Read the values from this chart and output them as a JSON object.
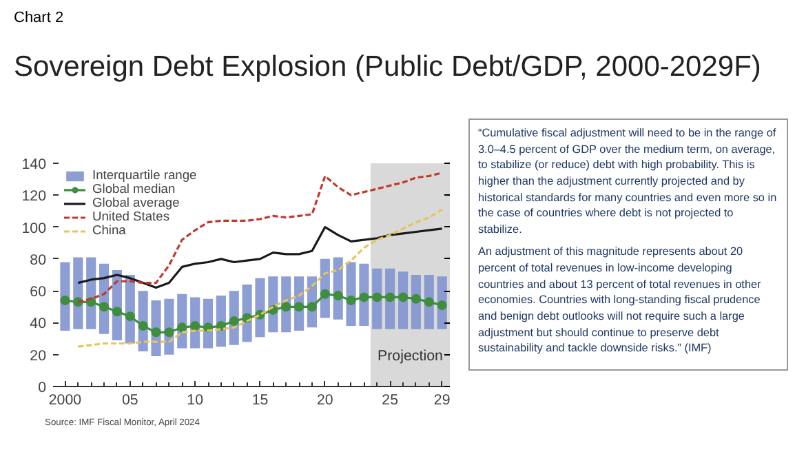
{
  "chart_data": [
    {
      "type": "bar",
      "title": "Sovereign Debt Explosion (Public Debt/GDP, 2000-2029F)",
      "subtitle": "Chart 2",
      "x": [
        2000,
        2001,
        2002,
        2003,
        2004,
        2005,
        2006,
        2007,
        2008,
        2009,
        2010,
        2011,
        2012,
        2013,
        2014,
        2015,
        2016,
        2017,
        2018,
        2019,
        2020,
        2021,
        2022,
        2023,
        2024,
        2025,
        2026,
        2027,
        2028,
        2029
      ],
      "series": [
        {
          "type": "bar",
          "name": "Interquartile range",
          "color": "#7f93cf",
          "base": [
            35,
            36,
            36,
            33,
            29,
            27,
            22,
            19,
            20,
            24,
            24,
            24,
            25,
            26,
            28,
            31,
            34,
            34,
            35,
            37,
            43,
            42,
            38,
            38,
            36,
            36,
            36,
            36,
            36,
            36
          ],
          "values": [
            43,
            45,
            45,
            44,
            44,
            43,
            38,
            35,
            35,
            34,
            32,
            31,
            32,
            34,
            36,
            37,
            35,
            35,
            34,
            32,
            37,
            39,
            40,
            39,
            38,
            38,
            36,
            34,
            34,
            33
          ]
        },
        {
          "type": "line",
          "name": "Global median",
          "color": "#3e8e3e",
          "marker": "circle",
          "line_style": "solid",
          "values": [
            54,
            53,
            53,
            50,
            47,
            44,
            38,
            34,
            34,
            37,
            38,
            37,
            38,
            41,
            43,
            45,
            48,
            50,
            50,
            50,
            58,
            57,
            54,
            56,
            56,
            56,
            56,
            55,
            53,
            51
          ]
        },
        {
          "type": "line",
          "name": "Global average",
          "color": "#1a1a1a",
          "marker": "none",
          "line_style": "solid",
          "values": [
            null,
            65,
            67,
            68,
            70,
            68,
            65,
            62,
            65,
            75,
            77,
            78,
            80,
            78,
            79,
            80,
            84,
            83,
            83,
            85,
            100,
            95,
            91,
            92,
            93,
            95,
            96,
            97,
            98,
            99
          ]
        },
        {
          "type": "line",
          "name": "United States",
          "color": "#c0392b",
          "marker": "none",
          "line_style": "dashed",
          "values": [
            null,
            53,
            55,
            58,
            66,
            66,
            65,
            65,
            76,
            92,
            98,
            103,
            104,
            104,
            104,
            105,
            107,
            106,
            107,
            108,
            132,
            125,
            120,
            122,
            124,
            126,
            128,
            131,
            132,
            134
          ]
        },
        {
          "type": "line",
          "name": "China",
          "color": "#e8c45a",
          "marker": "none",
          "line_style": "dashed",
          "values": [
            null,
            25,
            26,
            27,
            27,
            27,
            28,
            28,
            28,
            34,
            35,
            35,
            36,
            37,
            41,
            45,
            50,
            54,
            57,
            63,
            71,
            73,
            79,
            87,
            92,
            95,
            99,
            103,
            106,
            111
          ]
        }
      ],
      "xlim": [
        1999.5,
        2029.6
      ],
      "ylim": [
        0,
        140
      ],
      "xticks": [
        {
          "value": 2000,
          "label": "2000"
        },
        {
          "value": 2001,
          "label": null
        },
        {
          "value": 2002,
          "label": null
        },
        {
          "value": 2003,
          "label": null
        },
        {
          "value": 2004,
          "label": null
        },
        {
          "value": 2005,
          "label": "05"
        },
        {
          "value": 2006,
          "label": null
        },
        {
          "value": 2007,
          "label": null
        },
        {
          "value": 2008,
          "label": null
        },
        {
          "value": 2009,
          "label": null
        },
        {
          "value": 2010,
          "label": "10"
        },
        {
          "value": 2011,
          "label": null
        },
        {
          "value": 2012,
          "label": null
        },
        {
          "value": 2013,
          "label": null
        },
        {
          "value": 2014,
          "label": null
        },
        {
          "value": 2015,
          "label": "15"
        },
        {
          "value": 2016,
          "label": null
        },
        {
          "value": 2017,
          "label": null
        },
        {
          "value": 2018,
          "label": null
        },
        {
          "value": 2019,
          "label": null
        },
        {
          "value": 2020,
          "label": "20"
        },
        {
          "value": 2021,
          "label": null
        },
        {
          "value": 2022,
          "label": null
        },
        {
          "value": 2023,
          "label": null
        },
        {
          "value": 2024,
          "label": null
        },
        {
          "value": 2025,
          "label": "25"
        },
        {
          "value": 2026,
          "label": null
        },
        {
          "value": 2027,
          "label": null
        },
        {
          "value": 2028,
          "label": null
        },
        {
          "value": 2029,
          "label": "29"
        }
      ],
      "yticks": [
        0,
        20,
        40,
        60,
        80,
        100,
        120,
        140
      ],
      "bands": [
        {
          "axis": "x",
          "from": 2023.5,
          "to": 2029.6,
          "label": "Projection",
          "color": "#d9d9d9"
        }
      ],
      "annotations": [
        "Source: IMF Fiscal Monitor, April 2024"
      ],
      "grid": false,
      "legend": "top left"
    },
    {
      "type": "other",
      "annotations": [
        "“Cumulative fiscal adjustment will need to be in the range of 3.0–4.5 percent of GDP over the medium term, on average, to stabilize (or reduce) debt with high probability. This is higher than the adjustment currently projected and by historical standards for many countries and even more so in the case of countries where debt is not projected to stabilize.",
        "An adjustment of this magnitude represents about 20 percent of total revenues in low-income developing countries and about 13 percent of total revenues in other economies. Countries with long-standing fiscal prudence and benign debt outlooks will not require such a large adjustment but should continue to preserve debt sustainability and tackle downside risks.” (IMF)"
      ]
    }
  ]
}
